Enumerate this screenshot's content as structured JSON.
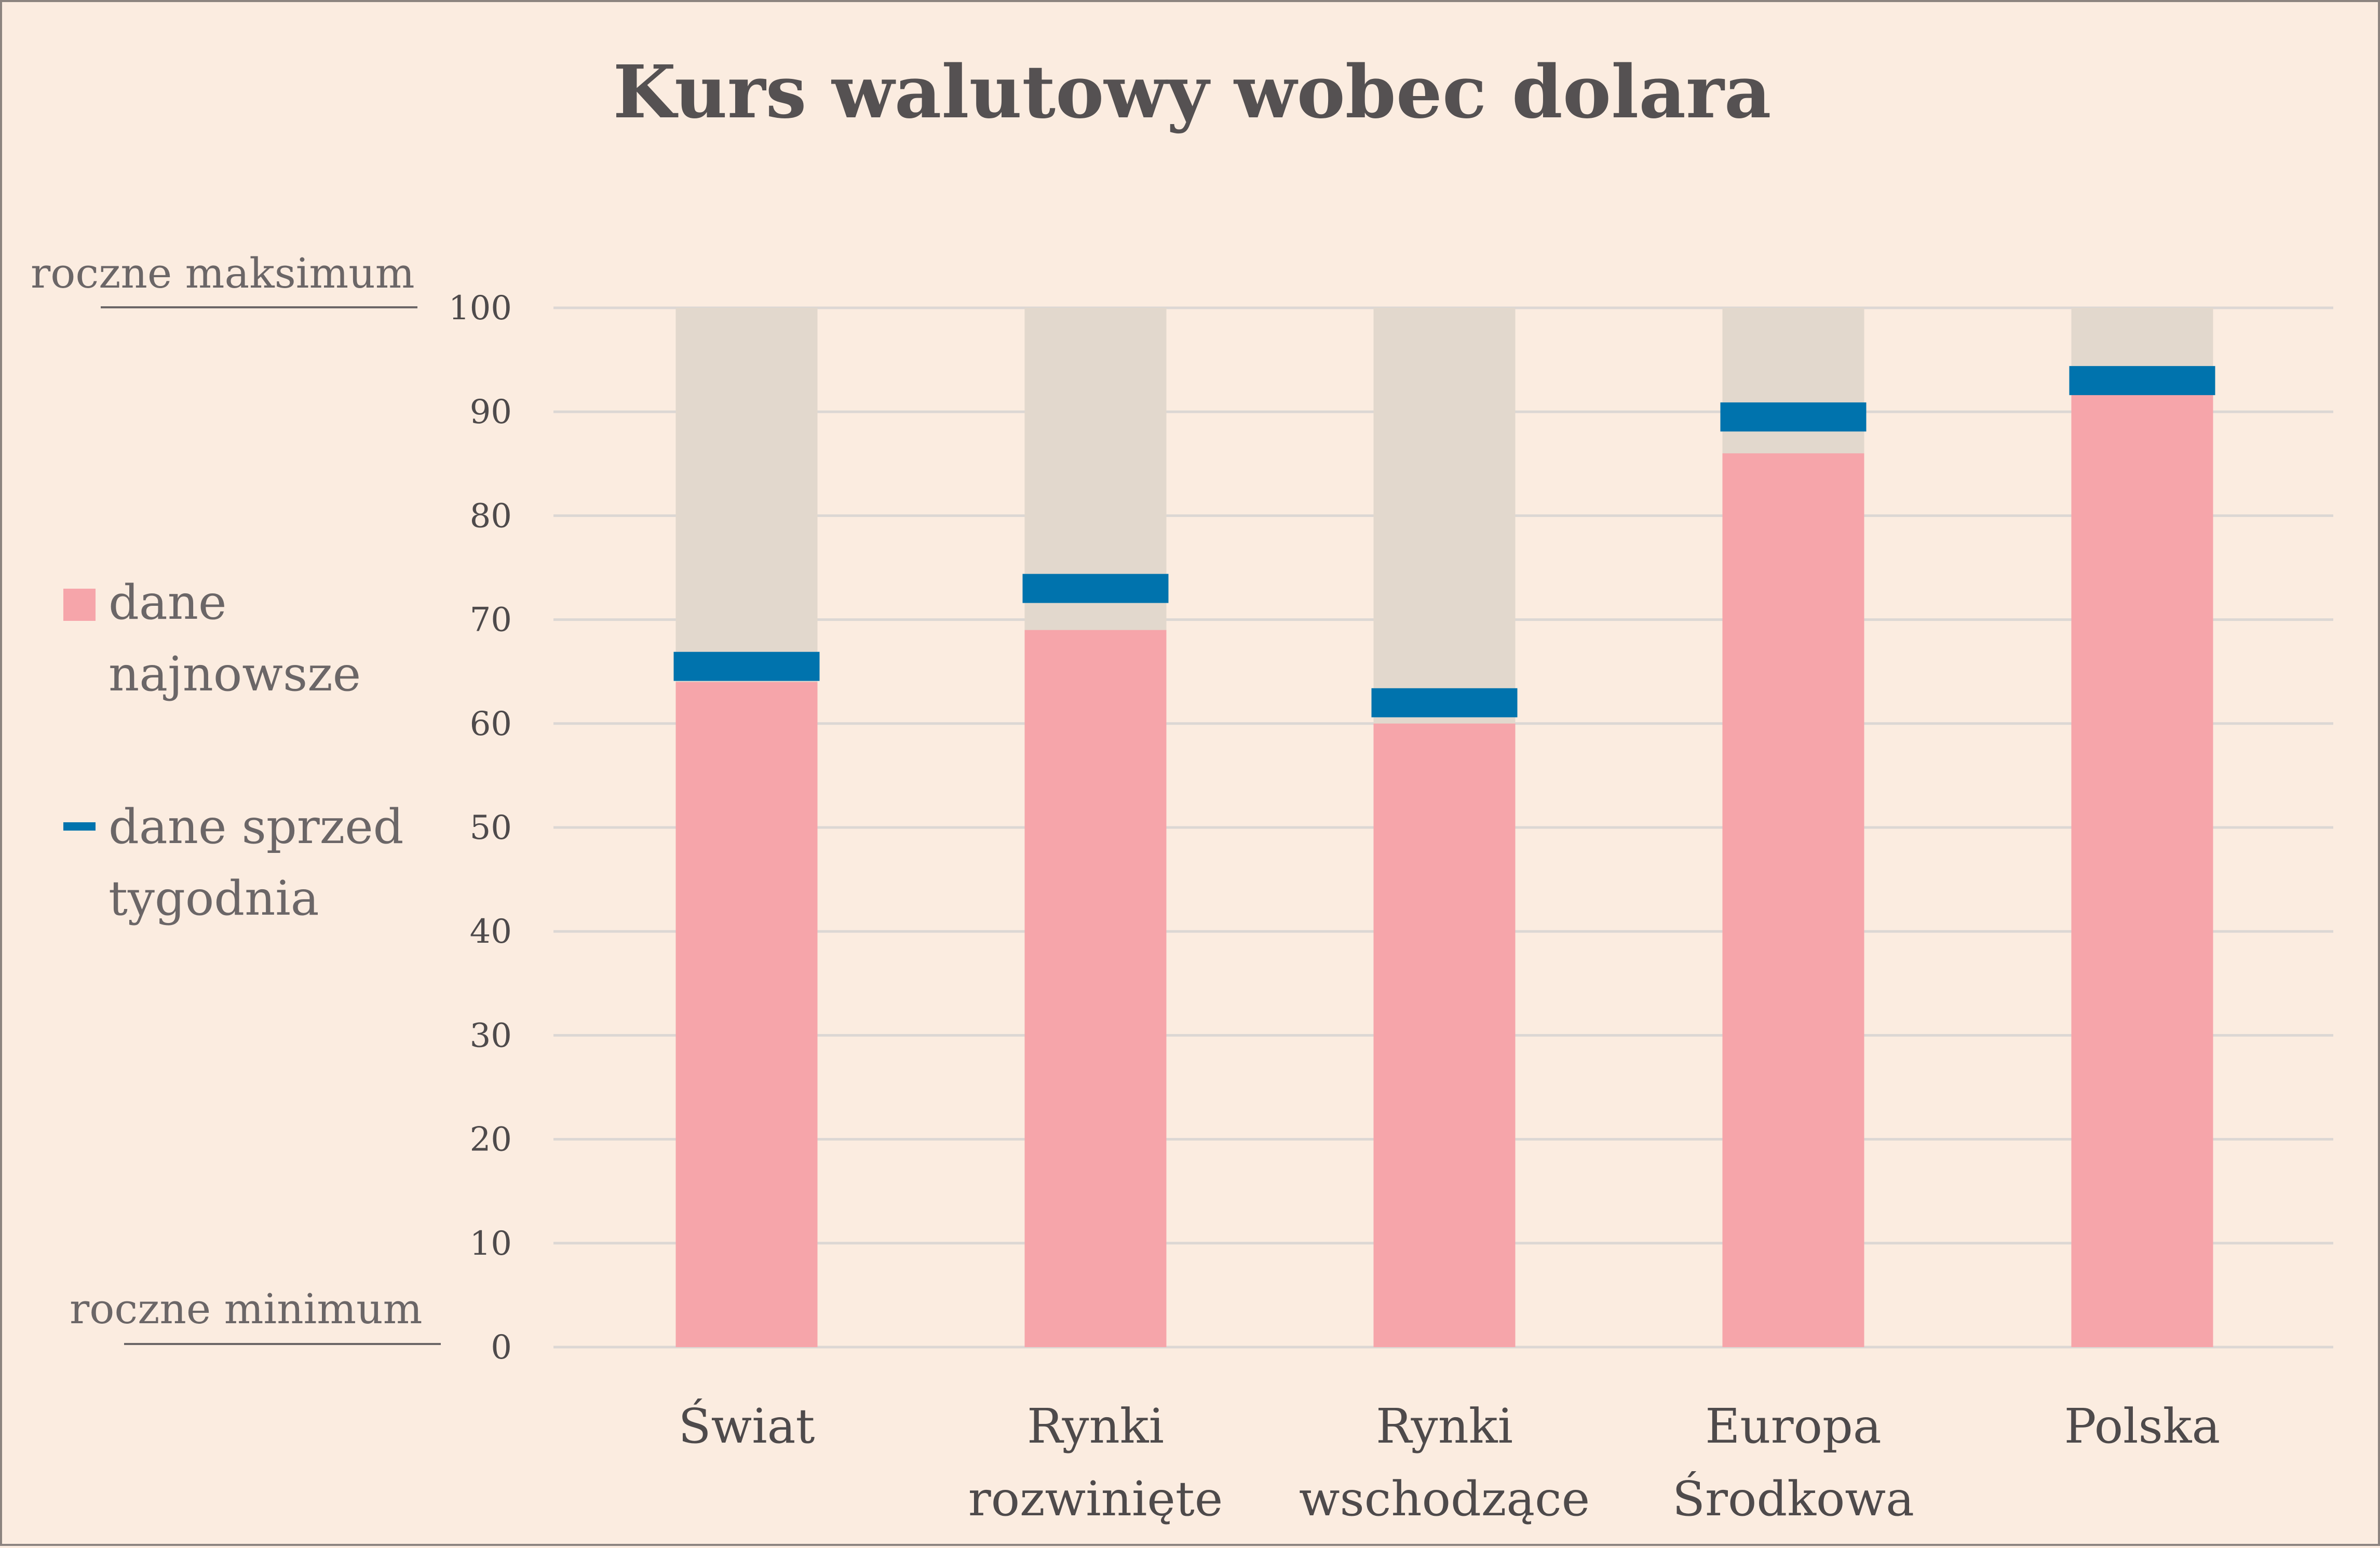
{
  "chart_data": {
    "type": "bar",
    "title": "Kurs walutowy wobec dolara",
    "categories": [
      "Świat",
      "Rynki|rozwinięte",
      "Rynki|wschodzące",
      "Europa|Środkowa",
      "Polska"
    ],
    "series": [
      {
        "name": "dane najnowsze",
        "values": [
          64,
          69,
          60,
          86,
          92
        ]
      },
      {
        "name": "dane sprzed tygodnia",
        "values": [
          65.5,
          73,
          62,
          89.5,
          93
        ]
      }
    ],
    "range_max": 100,
    "ylim": [
      0,
      100
    ],
    "yticks": [
      0,
      10,
      20,
      30,
      40,
      50,
      60,
      70,
      80,
      90,
      100
    ],
    "ymax_label": "roczne maksimum",
    "ymin_label": "roczne minimum",
    "grid": true,
    "legend_position": "left",
    "legend_labels": [
      [
        "dane",
        "najnowsze"
      ],
      [
        "dane sprzed",
        "tygodnia"
      ]
    ],
    "colors": {
      "background": "#fbece0",
      "range": "#e2d8cd",
      "latest": "#f6a5aa",
      "previous": "#0073ad",
      "grid": "#dcd7d4",
      "text": "#4e4a4b"
    }
  }
}
